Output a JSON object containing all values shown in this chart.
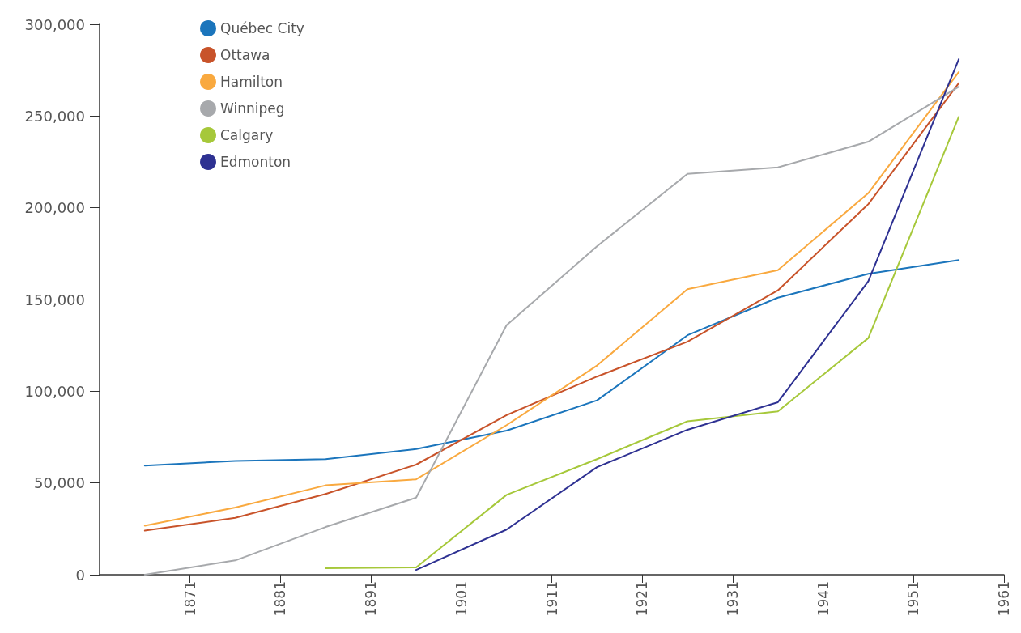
{
  "chart_data": {
    "type": "line",
    "xlim": [
      1861,
      1961
    ],
    "xticks": [
      1871,
      1881,
      1891,
      1901,
      1911,
      1921,
      1931,
      1941,
      1951,
      1961
    ],
    "ylim": [
      0,
      300000
    ],
    "yticks": [
      0,
      {
        "value": 50000,
        "label": "50,000"
      },
      {
        "value": 100000,
        "label": "100,000"
      },
      {
        "value": 150000,
        "label": "150,000"
      },
      {
        "value": 200000,
        "label": "200,000"
      },
      {
        "value": 250000,
        "label": "250,000"
      },
      {
        "value": 300000,
        "label": "300,000"
      }
    ],
    "grid": false,
    "legend": "top left",
    "marker": "none",
    "line_style": "solid",
    "series": [
      {
        "name": "Québec City",
        "color": "#1b75bc",
        "x": [
          1866,
          1876,
          1886,
          1896,
          1906,
          1916,
          1926,
          1936,
          1946,
          1956
        ],
        "values": [
          59500,
          62000,
          63000,
          68500,
          78500,
          95000,
          130500,
          151000,
          164000,
          171500
        ]
      },
      {
        "name": "Ottawa",
        "color": "#c8532a",
        "x": [
          1866,
          1876,
          1886,
          1896,
          1906,
          1916,
          1926,
          1936,
          1946,
          1956
        ],
        "values": [
          24000,
          31000,
          44000,
          60000,
          87000,
          108000,
          127000,
          155000,
          202000,
          268000
        ]
      },
      {
        "name": "Hamilton",
        "color": "#f9a93f",
        "x": [
          1866,
          1876,
          1886,
          1896,
          1906,
          1916,
          1926,
          1936,
          1946,
          1956
        ],
        "values": [
          26700,
          36600,
          48700,
          52000,
          81500,
          114000,
          155600,
          166000,
          208000,
          274000
        ]
      },
      {
        "name": "Winnipeg",
        "color": "#a7a9ac",
        "x": [
          1866,
          1876,
          1886,
          1896,
          1906,
          1916,
          1926,
          1936,
          1946,
          1956
        ],
        "values": [
          0,
          7800,
          26000,
          42000,
          136000,
          179000,
          218500,
          222000,
          236000,
          266000
        ]
      },
      {
        "name": "Calgary",
        "color": "#a6c83a",
        "x": [
          1886,
          1896,
          1906,
          1916,
          1926,
          1936,
          1946,
          1956
        ],
        "values": [
          3500,
          4000,
          43500,
          63000,
          83600,
          89000,
          129000,
          249600
        ]
      },
      {
        "name": "Edmonton",
        "color": "#2e3192",
        "x": [
          1896,
          1906,
          1916,
          1926,
          1936,
          1946,
          1956
        ],
        "values": [
          2600,
          24600,
          58600,
          79000,
          94000,
          160000,
          281000
        ]
      }
    ]
  }
}
